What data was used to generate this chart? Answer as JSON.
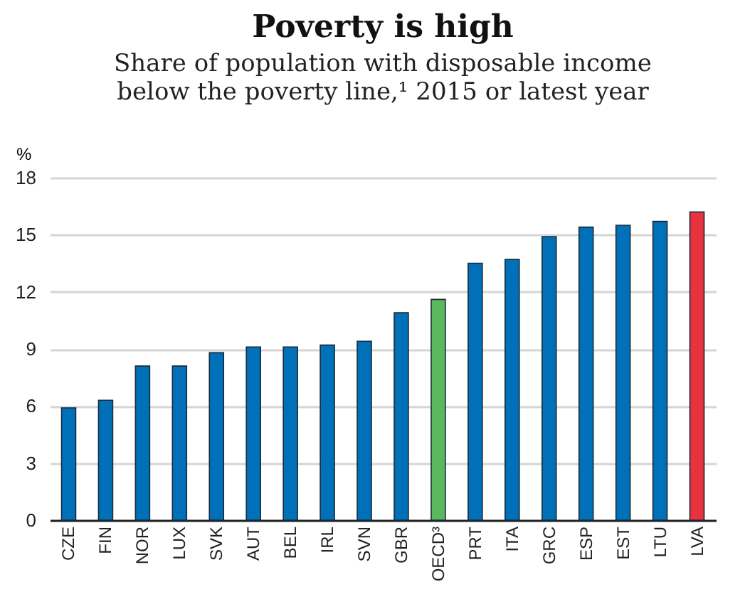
{
  "chart_data": {
    "type": "bar",
    "title": "Poverty is high",
    "subtitle": "Share of population with disposable income\nbelow the poverty line,¹ 2015 or latest year",
    "ylabel": "%",
    "categories": [
      "CZE",
      "FIN",
      "NOR",
      "LUX",
      "SVK",
      "AUT",
      "BEL",
      "IRL",
      "SVN",
      "GBR",
      "OECD³",
      "PRT",
      "ITA",
      "GRC",
      "ESP",
      "EST",
      "LTU",
      "LVA"
    ],
    "values": [
      5.9,
      6.3,
      8.1,
      8.1,
      8.8,
      9.1,
      9.1,
      9.2,
      9.4,
      10.9,
      11.6,
      13.5,
      13.7,
      14.9,
      15.4,
      15.5,
      15.7,
      16.2
    ],
    "colors": [
      "#0070b8",
      "#0070b8",
      "#0070b8",
      "#0070b8",
      "#0070b8",
      "#0070b8",
      "#0070b8",
      "#0070b8",
      "#0070b8",
      "#0070b8",
      "#5cb85c",
      "#0070b8",
      "#0070b8",
      "#0070b8",
      "#0070b8",
      "#0070b8",
      "#0070b8",
      "#e8333f"
    ],
    "ylim": [
      0,
      18
    ],
    "yticks": [
      0,
      3,
      6,
      9,
      12,
      15,
      18
    ],
    "grid": "y"
  }
}
